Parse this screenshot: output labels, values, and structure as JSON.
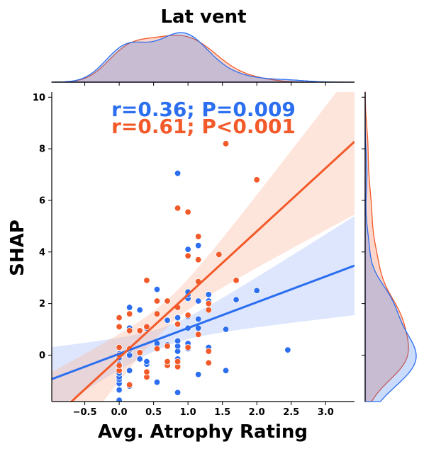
{
  "chart_data": {
    "type": "scatter",
    "title": "Lat vent",
    "xlabel": "Avg. Atrophy Rating",
    "ylabel": "SHAP",
    "xlim": [
      -0.98,
      3.42
    ],
    "ylim": [
      -1.8,
      10.2
    ],
    "xticks": [
      "−0.5",
      "0.0",
      "0.5",
      "1.0",
      "1.5",
      "2.0",
      "2.5",
      "3.0"
    ],
    "yticks": [
      "0",
      "2",
      "4",
      "6",
      "8",
      "10"
    ],
    "annotations": [
      {
        "text": "r=0.36; P=0.009",
        "color": "#2b6ef0"
      },
      {
        "text": "r=0.61; P<0.001",
        "color": "#f25a2a"
      }
    ],
    "series": [
      {
        "color": "#2b6ef0",
        "band_color": "#9db8f5",
        "regression": {
          "intercept": 0.05,
          "slope": 1.0
        },
        "points": [
          [
            0,
            -1.75
          ],
          [
            0,
            -1.35
          ],
          [
            0,
            -1.1
          ],
          [
            0,
            -0.95
          ],
          [
            0,
            -0.85
          ],
          [
            0,
            -0.7
          ],
          [
            0,
            -0.45
          ],
          [
            0,
            -0.35
          ],
          [
            0,
            -0.1
          ],
          [
            0,
            0.05
          ],
          [
            0.15,
            -1.2
          ],
          [
            0.15,
            -0.6
          ],
          [
            0.15,
            0
          ],
          [
            0.15,
            0.2
          ],
          [
            0.15,
            1.05
          ],
          [
            0.15,
            1.85
          ],
          [
            0.3,
            -0.15
          ],
          [
            0.3,
            1.75
          ],
          [
            0.4,
            -0.35
          ],
          [
            0.4,
            -0.25
          ],
          [
            0.4,
            1.05
          ],
          [
            0.55,
            -1.05
          ],
          [
            0.55,
            0.3
          ],
          [
            0.55,
            0.45
          ],
          [
            0.55,
            2.55
          ],
          [
            0.7,
            -0.3
          ],
          [
            0.7,
            0.4
          ],
          [
            0.7,
            1.35
          ],
          [
            0.85,
            -1.45
          ],
          [
            0.85,
            -0.45
          ],
          [
            0.85,
            -0.3
          ],
          [
            0.85,
            -0.15
          ],
          [
            0.85,
            0.15
          ],
          [
            0.85,
            0.35
          ],
          [
            0.85,
            0.55
          ],
          [
            0.85,
            1.45
          ],
          [
            0.85,
            7.05
          ],
          [
            1.0,
            0.25
          ],
          [
            1.0,
            0.45
          ],
          [
            1.0,
            1.05
          ],
          [
            1.0,
            1.5
          ],
          [
            1.0,
            2.2
          ],
          [
            1.0,
            2.35
          ],
          [
            1.0,
            2.45
          ],
          [
            1.0,
            4.1
          ],
          [
            1.15,
            -0.75
          ],
          [
            1.15,
            1.05
          ],
          [
            1.15,
            1.4
          ],
          [
            1.15,
            2.1
          ],
          [
            1.15,
            4.25
          ],
          [
            1.3,
            0.3
          ],
          [
            1.3,
            2.1
          ],
          [
            1.3,
            2.35
          ],
          [
            1.55,
            -0.6
          ],
          [
            1.55,
            1.0
          ],
          [
            1.7,
            2.15
          ],
          [
            2.0,
            2.5
          ],
          [
            2.45,
            0.2
          ]
        ]
      },
      {
        "color": "#f25a2a",
        "band_color": "#fbb59a",
        "regression": {
          "intercept": -0.1,
          "slope": 2.45
        },
        "points": [
          [
            0,
            -0.6
          ],
          [
            0,
            -0.4
          ],
          [
            0,
            0
          ],
          [
            0,
            0.3
          ],
          [
            0,
            1.1
          ],
          [
            0,
            1.45
          ],
          [
            0.15,
            -1.15
          ],
          [
            0.15,
            0.25
          ],
          [
            0.15,
            0.95
          ],
          [
            0.15,
            1.6
          ],
          [
            0.3,
            0.1
          ],
          [
            0.3,
            0.95
          ],
          [
            0.4,
            -0.85
          ],
          [
            0.4,
            -0.65
          ],
          [
            0.4,
            1.1
          ],
          [
            0.4,
            2.9
          ],
          [
            0.55,
            0.25
          ],
          [
            0.55,
            1.6
          ],
          [
            0.55,
            2.1
          ],
          [
            0.7,
            -0.4
          ],
          [
            0.7,
            -0.25
          ],
          [
            0.7,
            0.35
          ],
          [
            0.7,
            2.1
          ],
          [
            0.85,
            -0.45
          ],
          [
            0.85,
            -0.25
          ],
          [
            0.85,
            1.2
          ],
          [
            0.85,
            1.85
          ],
          [
            0.85,
            5.7
          ],
          [
            1.0,
            0.3
          ],
          [
            1.0,
            1.55
          ],
          [
            1.0,
            3.85
          ],
          [
            1.0,
            5.55
          ],
          [
            1.15,
            0.8
          ],
          [
            1.15,
            2.85
          ],
          [
            1.15,
            3.7
          ],
          [
            1.15,
            4.6
          ],
          [
            1.3,
            -0.3
          ],
          [
            1.3,
            0.15
          ],
          [
            1.3,
            1.75
          ],
          [
            1.3,
            2.0
          ],
          [
            1.45,
            3.9
          ],
          [
            1.55,
            8.2
          ],
          [
            1.7,
            2.9
          ],
          [
            2.0,
            6.8
          ]
        ]
      }
    ]
  }
}
